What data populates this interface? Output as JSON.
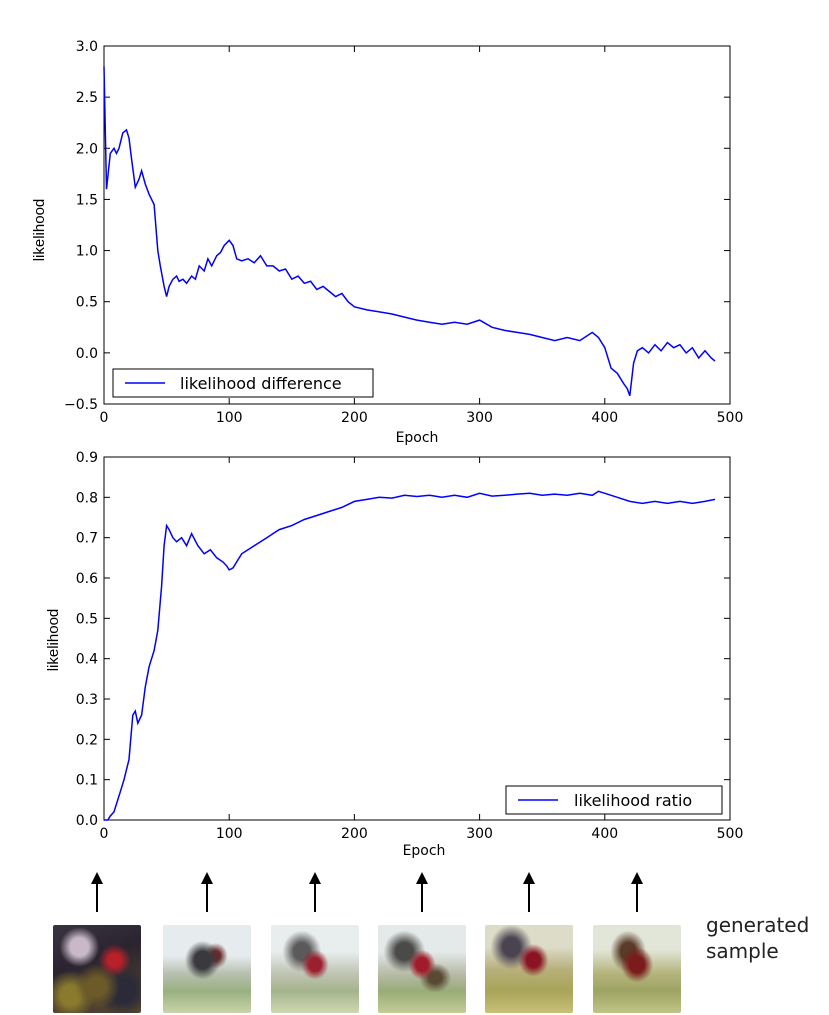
{
  "chart_data": [
    {
      "type": "line",
      "title": "",
      "xlabel": "Epoch",
      "ylabel": "likelihood",
      "xlim": [
        0,
        500
      ],
      "ylim": [
        -0.5,
        3.0
      ],
      "xticks": [
        "0",
        "100",
        "200",
        "300",
        "400",
        "500"
      ],
      "yticks": [
        "−0.5",
        "0.0",
        "0.5",
        "1.0",
        "1.5",
        "2.0",
        "2.5",
        "3.0"
      ],
      "legend_position": "lower-left",
      "grid": false,
      "series": [
        {
          "name": "likelihood difference",
          "color": "#0000ff",
          "x": [
            0,
            2,
            5,
            8,
            10,
            12,
            15,
            18,
            20,
            22,
            25,
            28,
            30,
            33,
            36,
            40,
            43,
            45,
            48,
            50,
            52,
            55,
            58,
            60,
            63,
            66,
            70,
            73,
            76,
            80,
            83,
            86,
            90,
            93,
            96,
            100,
            103,
            106,
            110,
            115,
            120,
            125,
            130,
            135,
            140,
            145,
            150,
            155,
            160,
            165,
            170,
            175,
            180,
            185,
            190,
            195,
            200,
            210,
            220,
            230,
            240,
            250,
            260,
            270,
            280,
            290,
            300,
            310,
            320,
            330,
            340,
            350,
            360,
            370,
            380,
            390,
            395,
            400,
            405,
            410,
            415,
            418,
            420,
            423,
            426,
            430,
            435,
            440,
            445,
            450,
            455,
            460,
            465,
            470,
            475,
            480,
            485,
            488
          ],
          "y": [
            2.8,
            1.6,
            1.95,
            2.0,
            1.95,
            2.0,
            2.15,
            2.18,
            2.1,
            1.9,
            1.62,
            1.7,
            1.78,
            1.65,
            1.55,
            1.45,
            1.0,
            0.85,
            0.65,
            0.55,
            0.65,
            0.72,
            0.75,
            0.7,
            0.72,
            0.68,
            0.75,
            0.72,
            0.85,
            0.8,
            0.92,
            0.85,
            0.95,
            0.98,
            1.05,
            1.1,
            1.05,
            0.92,
            0.9,
            0.92,
            0.88,
            0.95,
            0.85,
            0.85,
            0.8,
            0.82,
            0.72,
            0.75,
            0.68,
            0.7,
            0.62,
            0.65,
            0.6,
            0.55,
            0.58,
            0.5,
            0.45,
            0.42,
            0.4,
            0.38,
            0.35,
            0.32,
            0.3,
            0.28,
            0.3,
            0.28,
            0.32,
            0.25,
            0.22,
            0.2,
            0.18,
            0.15,
            0.12,
            0.15,
            0.12,
            0.2,
            0.15,
            0.05,
            -0.15,
            -0.2,
            -0.3,
            -0.35,
            -0.42,
            -0.1,
            0.02,
            0.05,
            0.0,
            0.08,
            0.02,
            0.1,
            0.05,
            0.08,
            0.0,
            0.05,
            -0.05,
            0.02,
            -0.05,
            -0.08
          ]
        }
      ]
    },
    {
      "type": "line",
      "title": "",
      "xlabel": "Epoch",
      "ylabel": "likelihood",
      "xlim": [
        0,
        500
      ],
      "ylim": [
        0.0,
        0.9
      ],
      "xticks": [
        "0",
        "100",
        "200",
        "300",
        "400",
        "500"
      ],
      "yticks": [
        "0.0",
        "0.1",
        "0.2",
        "0.3",
        "0.4",
        "0.5",
        "0.6",
        "0.7",
        "0.8",
        "0.9"
      ],
      "legend_position": "lower-right",
      "grid": false,
      "series": [
        {
          "name": "likelihood ratio",
          "color": "#0000ff",
          "x": [
            0,
            3,
            5,
            8,
            10,
            13,
            16,
            20,
            23,
            25,
            27,
            30,
            33,
            36,
            40,
            43,
            46,
            48,
            50,
            52,
            55,
            58,
            62,
            66,
            70,
            75,
            80,
            85,
            90,
            95,
            98,
            100,
            103,
            106,
            110,
            115,
            120,
            125,
            130,
            135,
            140,
            150,
            160,
            170,
            180,
            190,
            200,
            210,
            220,
            230,
            240,
            250,
            260,
            270,
            280,
            290,
            300,
            310,
            320,
            330,
            340,
            350,
            360,
            370,
            380,
            390,
            395,
            400,
            405,
            410,
            420,
            430,
            440,
            450,
            460,
            470,
            480,
            488
          ],
          "y": [
            0.0,
            0.0,
            0.01,
            0.02,
            0.04,
            0.07,
            0.1,
            0.15,
            0.26,
            0.27,
            0.24,
            0.26,
            0.33,
            0.38,
            0.42,
            0.47,
            0.58,
            0.68,
            0.73,
            0.72,
            0.7,
            0.69,
            0.7,
            0.68,
            0.71,
            0.68,
            0.66,
            0.67,
            0.65,
            0.64,
            0.63,
            0.62,
            0.625,
            0.64,
            0.66,
            0.67,
            0.68,
            0.69,
            0.7,
            0.71,
            0.72,
            0.73,
            0.745,
            0.755,
            0.765,
            0.775,
            0.79,
            0.795,
            0.8,
            0.798,
            0.805,
            0.802,
            0.805,
            0.8,
            0.805,
            0.8,
            0.81,
            0.803,
            0.805,
            0.808,
            0.81,
            0.805,
            0.808,
            0.805,
            0.81,
            0.805,
            0.815,
            0.81,
            0.805,
            0.8,
            0.79,
            0.785,
            0.79,
            0.785,
            0.79,
            0.785,
            0.79,
            0.795
          ]
        }
      ]
    }
  ],
  "samples": {
    "caption_line1": "generated",
    "caption_line2": "sample",
    "count": 6
  }
}
